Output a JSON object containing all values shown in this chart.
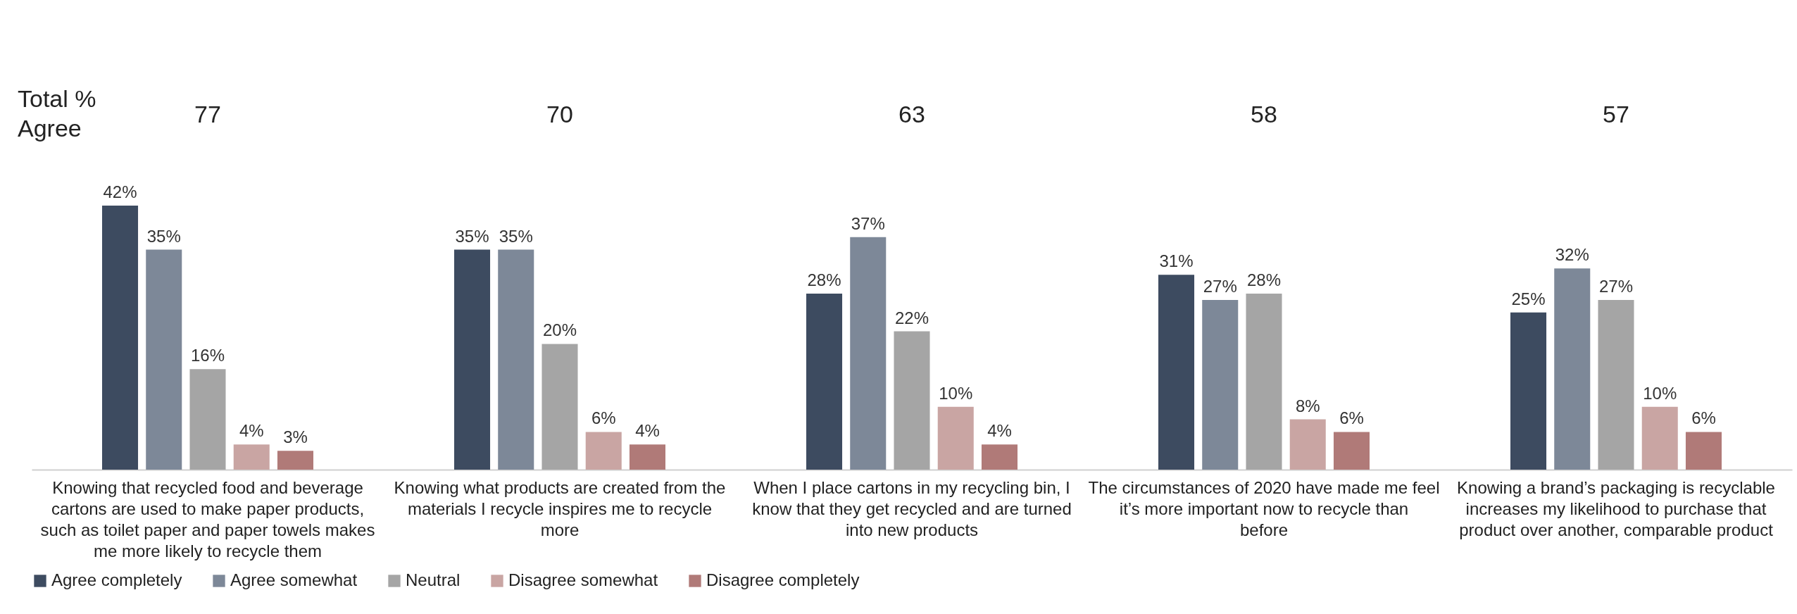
{
  "chart_data": {
    "type": "bar",
    "categories": [
      "Knowing that recycled food and beverage cartons are used to make paper products, such as toilet paper and paper towels makes me more likely to recycle them",
      "Knowing what products are created from the materials I recycle inspires me to recycle more",
      "When I place cartons in my recycling bin, I know that they get recycled and are turned into new products",
      "The circumstances of 2020 have made me feel it’s more important now to recycle than before",
      "Knowing a brand’s packaging is recyclable increases my likelihood to purchase that product over another, comparable product"
    ],
    "series": [
      {
        "name": "Agree completely",
        "color": "#3d4b60",
        "values": [
          42,
          35,
          28,
          31,
          25
        ],
        "value_labels": [
          "42%",
          "35%",
          "28%",
          "31%",
          "25%"
        ]
      },
      {
        "name": "Agree somewhat",
        "color": "#7d8898",
        "values": [
          35,
          35,
          37,
          27,
          32
        ],
        "value_labels": [
          "35%",
          "35%",
          "37%",
          "27%",
          "32%"
        ]
      },
      {
        "name": "Neutral",
        "color": "#a5a5a5",
        "values": [
          16,
          20,
          22,
          28,
          27
        ],
        "value_labels": [
          "16%",
          "20%",
          "22%",
          "28%",
          "27%"
        ]
      },
      {
        "name": "Disagree somewhat",
        "color": "#c9a5a3",
        "values": [
          4,
          6,
          10,
          8,
          10
        ],
        "value_labels": [
          "4%",
          "6%",
          "10%",
          "8%",
          "10%"
        ]
      },
      {
        "name": "Disagree completely",
        "color": "#b07a78",
        "values": [
          3,
          4,
          4,
          6,
          6
        ],
        "value_labels": [
          "3%",
          "4%",
          "4%",
          "6%",
          "6%"
        ]
      }
    ],
    "annotations": [
      "Total %\nAgree",
      "77",
      "70",
      "63",
      "58",
      "57"
    ],
    "legend": "bottom"
  }
}
